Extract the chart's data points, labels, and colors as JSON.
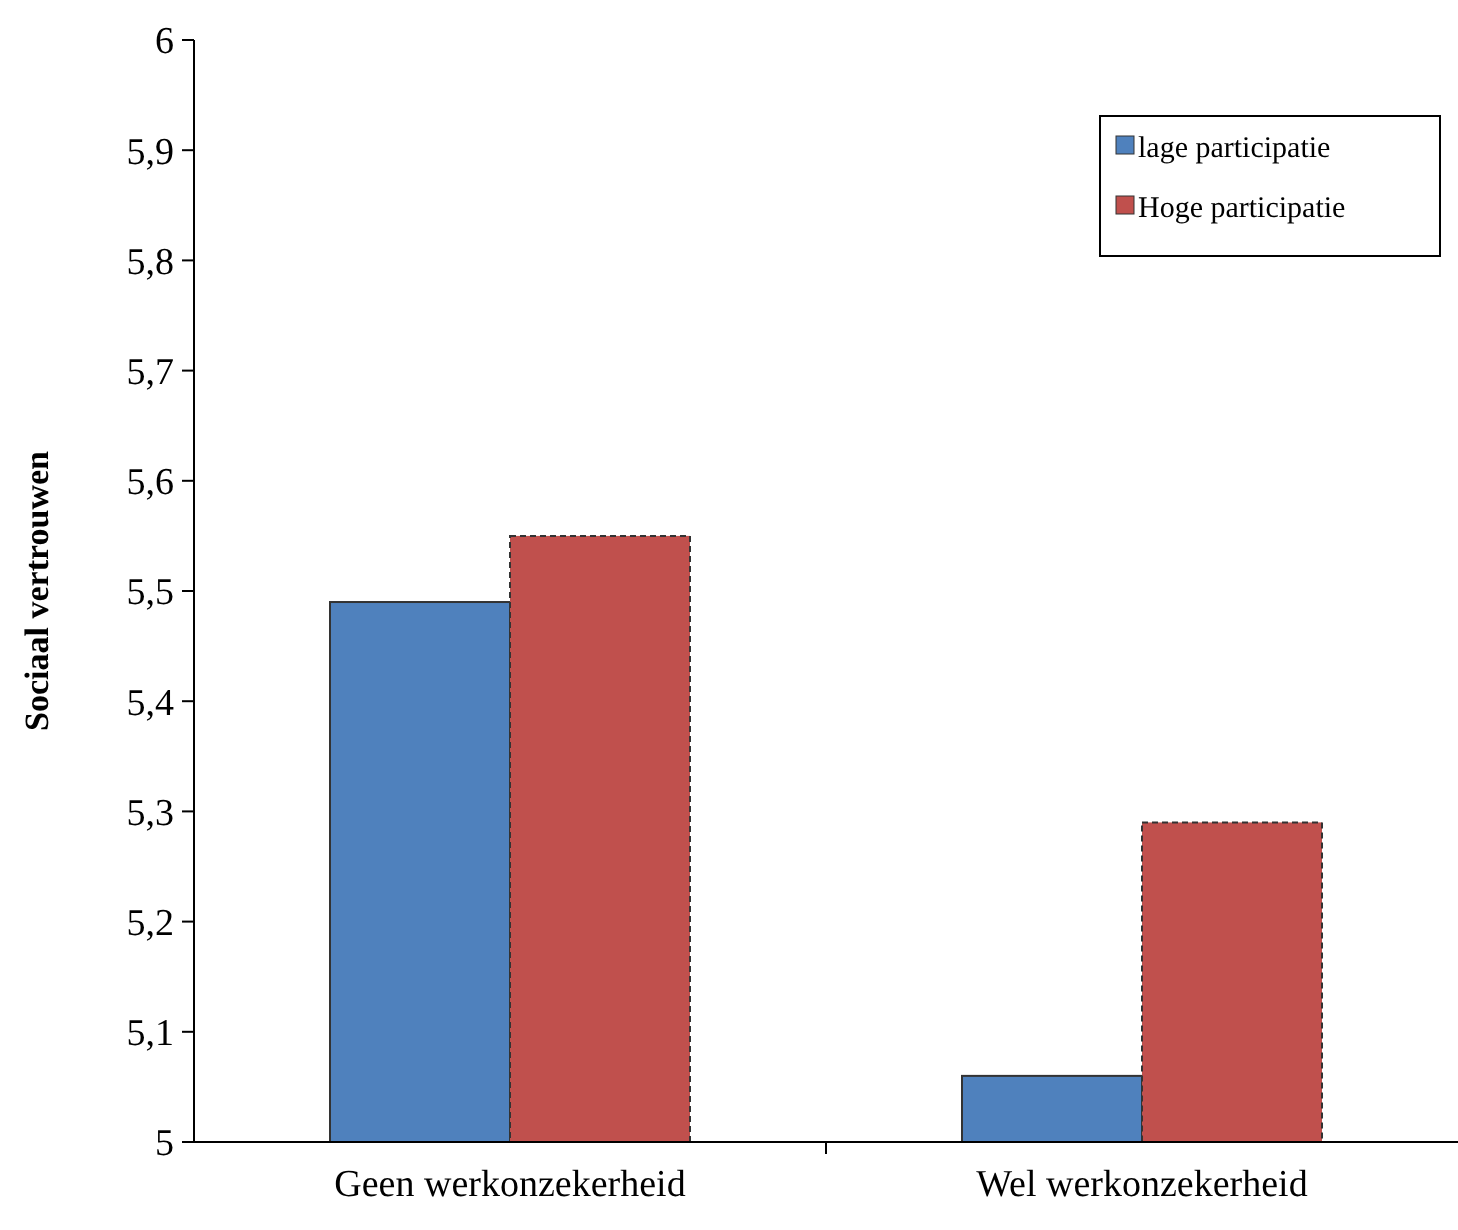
{
  "chart_data": {
    "type": "bar",
    "ylabel": "Sociaal vertrouwen",
    "categories": [
      "Geen werkonzekerheid",
      "Wel werkonzekerheid"
    ],
    "series": [
      {
        "name": "lage participatie",
        "color": "#4f81bd",
        "values": [
          5.49,
          5.06
        ]
      },
      {
        "name": "Hoge participatie",
        "color": "#c0504d",
        "values": [
          5.55,
          5.29
        ]
      }
    ],
    "ylim": [
      5,
      6
    ],
    "yticks": [
      5,
      {
        "value": 5.1,
        "label": "5,1"
      },
      {
        "value": 5.2,
        "label": "5,2"
      },
      {
        "value": 5.3,
        "label": "5,3"
      },
      {
        "value": 5.4,
        "label": "5,4"
      },
      {
        "value": 5.5,
        "label": "5,5"
      },
      {
        "value": 5.6,
        "label": "5,6"
      },
      {
        "value": 5.7,
        "label": "5,7"
      },
      {
        "value": 5.8,
        "label": "5,8"
      },
      {
        "value": 5.9,
        "label": "5,9"
      },
      6
    ],
    "grid": false,
    "legend": "top right"
  }
}
